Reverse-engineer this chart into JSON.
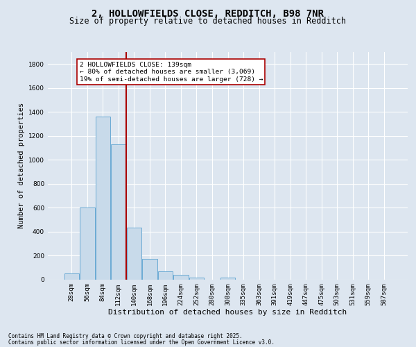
{
  "title_line1": "2, HOLLOWFIELDS CLOSE, REDDITCH, B98 7NR",
  "title_line2": "Size of property relative to detached houses in Redditch",
  "xlabel": "Distribution of detached houses by size in Redditch",
  "ylabel": "Number of detached properties",
  "bar_labels": [
    "28sqm",
    "56sqm",
    "84sqm",
    "112sqm",
    "140sqm",
    "168sqm",
    "196sqm",
    "224sqm",
    "252sqm",
    "280sqm",
    "308sqm",
    "335sqm",
    "363sqm",
    "391sqm",
    "419sqm",
    "447sqm",
    "475sqm",
    "503sqm",
    "531sqm",
    "559sqm",
    "587sqm"
  ],
  "bar_values": [
    50,
    600,
    1360,
    1130,
    430,
    170,
    65,
    40,
    15,
    0,
    15,
    0,
    0,
    0,
    0,
    0,
    0,
    0,
    0,
    0,
    0
  ],
  "bar_color": "#c8daea",
  "bar_edge_color": "#6aaad4",
  "vline_color": "#aa0000",
  "annotation_text": "2 HOLLOWFIELDS CLOSE: 139sqm\n← 80% of detached houses are smaller (3,069)\n19% of semi-detached houses are larger (728) →",
  "annotation_box_color": "#aa0000",
  "ylim": [
    0,
    1900
  ],
  "yticks": [
    0,
    200,
    400,
    600,
    800,
    1000,
    1200,
    1400,
    1600,
    1800
  ],
  "background_color": "#dde6f0",
  "plot_background": "#dde6f0",
  "grid_color": "#ffffff",
  "footer_line1": "Contains HM Land Registry data © Crown copyright and database right 2025.",
  "footer_line2": "Contains public sector information licensed under the Open Government Licence v3.0.",
  "title_fontsize": 10,
  "subtitle_fontsize": 8.5,
  "tick_fontsize": 6.5,
  "ylabel_fontsize": 7.5,
  "xlabel_fontsize": 8,
  "annotation_fontsize": 6.8,
  "footer_fontsize": 5.5
}
